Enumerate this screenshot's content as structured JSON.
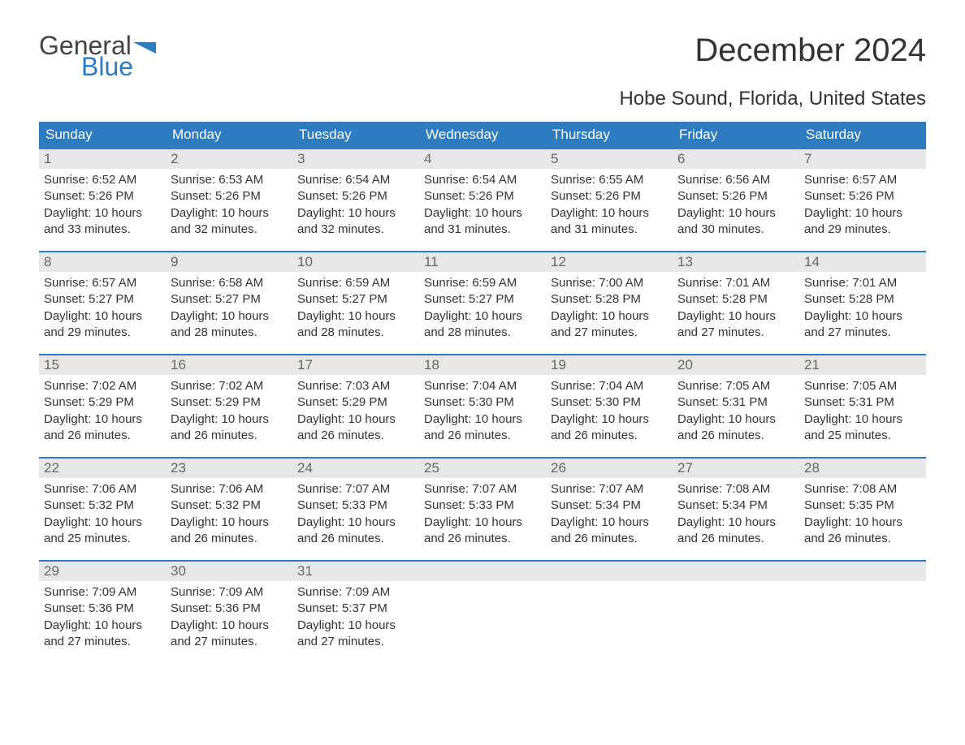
{
  "brand": {
    "word1": "General",
    "word2": "Blue",
    "accent_color": "#2e7cc0",
    "text_color": "#444444"
  },
  "title": "December 2024",
  "location": "Hobe Sound, Florida, United States",
  "colors": {
    "header_bg": "#2e7cc0",
    "header_text": "#ffffff",
    "daynum_bg": "#e7e7e7",
    "daynum_text": "#666666",
    "body_text": "#333333",
    "page_bg": "#ffffff"
  },
  "day_labels": [
    "Sunday",
    "Monday",
    "Tuesday",
    "Wednesday",
    "Thursday",
    "Friday",
    "Saturday"
  ],
  "weeks": [
    [
      {
        "n": "1",
        "sunrise": "6:52 AM",
        "sunset": "5:26 PM",
        "daylight": "10 hours and 33 minutes."
      },
      {
        "n": "2",
        "sunrise": "6:53 AM",
        "sunset": "5:26 PM",
        "daylight": "10 hours and 32 minutes."
      },
      {
        "n": "3",
        "sunrise": "6:54 AM",
        "sunset": "5:26 PM",
        "daylight": "10 hours and 32 minutes."
      },
      {
        "n": "4",
        "sunrise": "6:54 AM",
        "sunset": "5:26 PM",
        "daylight": "10 hours and 31 minutes."
      },
      {
        "n": "5",
        "sunrise": "6:55 AM",
        "sunset": "5:26 PM",
        "daylight": "10 hours and 31 minutes."
      },
      {
        "n": "6",
        "sunrise": "6:56 AM",
        "sunset": "5:26 PM",
        "daylight": "10 hours and 30 minutes."
      },
      {
        "n": "7",
        "sunrise": "6:57 AM",
        "sunset": "5:26 PM",
        "daylight": "10 hours and 29 minutes."
      }
    ],
    [
      {
        "n": "8",
        "sunrise": "6:57 AM",
        "sunset": "5:27 PM",
        "daylight": "10 hours and 29 minutes."
      },
      {
        "n": "9",
        "sunrise": "6:58 AM",
        "sunset": "5:27 PM",
        "daylight": "10 hours and 28 minutes."
      },
      {
        "n": "10",
        "sunrise": "6:59 AM",
        "sunset": "5:27 PM",
        "daylight": "10 hours and 28 minutes."
      },
      {
        "n": "11",
        "sunrise": "6:59 AM",
        "sunset": "5:27 PM",
        "daylight": "10 hours and 28 minutes."
      },
      {
        "n": "12",
        "sunrise": "7:00 AM",
        "sunset": "5:28 PM",
        "daylight": "10 hours and 27 minutes."
      },
      {
        "n": "13",
        "sunrise": "7:01 AM",
        "sunset": "5:28 PM",
        "daylight": "10 hours and 27 minutes."
      },
      {
        "n": "14",
        "sunrise": "7:01 AM",
        "sunset": "5:28 PM",
        "daylight": "10 hours and 27 minutes."
      }
    ],
    [
      {
        "n": "15",
        "sunrise": "7:02 AM",
        "sunset": "5:29 PM",
        "daylight": "10 hours and 26 minutes."
      },
      {
        "n": "16",
        "sunrise": "7:02 AM",
        "sunset": "5:29 PM",
        "daylight": "10 hours and 26 minutes."
      },
      {
        "n": "17",
        "sunrise": "7:03 AM",
        "sunset": "5:29 PM",
        "daylight": "10 hours and 26 minutes."
      },
      {
        "n": "18",
        "sunrise": "7:04 AM",
        "sunset": "5:30 PM",
        "daylight": "10 hours and 26 minutes."
      },
      {
        "n": "19",
        "sunrise": "7:04 AM",
        "sunset": "5:30 PM",
        "daylight": "10 hours and 26 minutes."
      },
      {
        "n": "20",
        "sunrise": "7:05 AM",
        "sunset": "5:31 PM",
        "daylight": "10 hours and 26 minutes."
      },
      {
        "n": "21",
        "sunrise": "7:05 AM",
        "sunset": "5:31 PM",
        "daylight": "10 hours and 25 minutes."
      }
    ],
    [
      {
        "n": "22",
        "sunrise": "7:06 AM",
        "sunset": "5:32 PM",
        "daylight": "10 hours and 25 minutes."
      },
      {
        "n": "23",
        "sunrise": "7:06 AM",
        "sunset": "5:32 PM",
        "daylight": "10 hours and 26 minutes."
      },
      {
        "n": "24",
        "sunrise": "7:07 AM",
        "sunset": "5:33 PM",
        "daylight": "10 hours and 26 minutes."
      },
      {
        "n": "25",
        "sunrise": "7:07 AM",
        "sunset": "5:33 PM",
        "daylight": "10 hours and 26 minutes."
      },
      {
        "n": "26",
        "sunrise": "7:07 AM",
        "sunset": "5:34 PM",
        "daylight": "10 hours and 26 minutes."
      },
      {
        "n": "27",
        "sunrise": "7:08 AM",
        "sunset": "5:34 PM",
        "daylight": "10 hours and 26 minutes."
      },
      {
        "n": "28",
        "sunrise": "7:08 AM",
        "sunset": "5:35 PM",
        "daylight": "10 hours and 26 minutes."
      }
    ],
    [
      {
        "n": "29",
        "sunrise": "7:09 AM",
        "sunset": "5:36 PM",
        "daylight": "10 hours and 27 minutes."
      },
      {
        "n": "30",
        "sunrise": "7:09 AM",
        "sunset": "5:36 PM",
        "daylight": "10 hours and 27 minutes."
      },
      {
        "n": "31",
        "sunrise": "7:09 AM",
        "sunset": "5:37 PM",
        "daylight": "10 hours and 27 minutes."
      },
      null,
      null,
      null,
      null
    ]
  ],
  "labels": {
    "sunrise_prefix": "Sunrise: ",
    "sunset_prefix": "Sunset: ",
    "daylight_prefix": "Daylight: "
  }
}
